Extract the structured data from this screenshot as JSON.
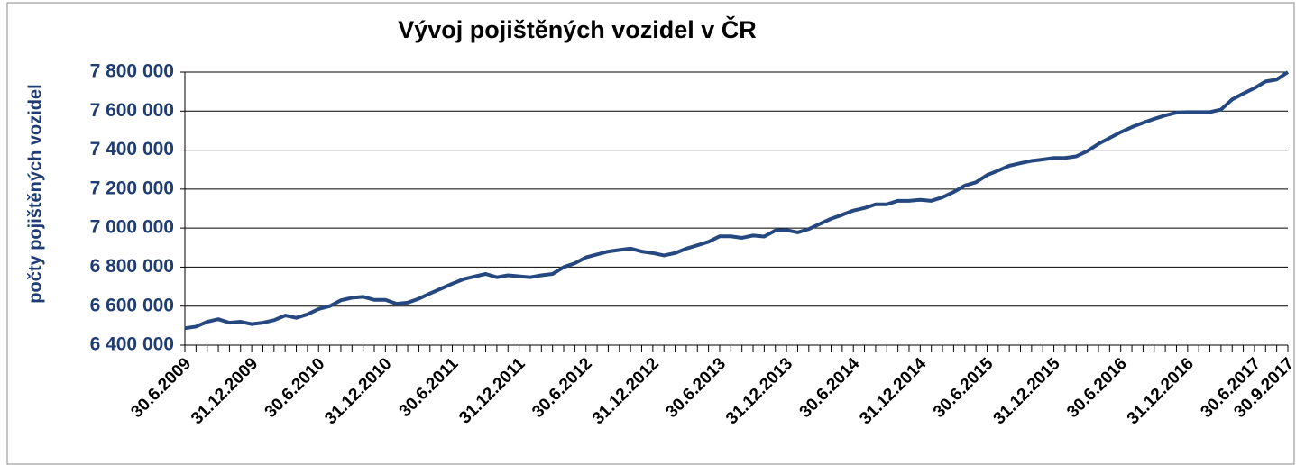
{
  "chart_data": {
    "type": "line",
    "title": "Vývoj pojištěných vozidel v ČR",
    "y_label": "počty pojištěných vozidel",
    "categories": [
      "30.6.2009",
      null,
      null,
      null,
      null,
      null,
      "31.12.2009",
      null,
      null,
      null,
      null,
      null,
      "30.6.2010",
      null,
      null,
      null,
      null,
      null,
      "31.12.2010",
      null,
      null,
      null,
      null,
      null,
      "30.6.2011",
      null,
      null,
      null,
      null,
      null,
      "31.12.2011",
      null,
      null,
      null,
      null,
      null,
      "30.6.2012",
      null,
      null,
      null,
      null,
      null,
      "31.12.2012",
      null,
      null,
      null,
      null,
      null,
      "30.6.2013",
      null,
      null,
      null,
      null,
      null,
      "31.12.2013",
      null,
      null,
      null,
      null,
      null,
      "30.6.2014",
      null,
      null,
      null,
      null,
      null,
      "31.12.2014",
      null,
      null,
      null,
      null,
      null,
      "30.6.2015",
      null,
      null,
      null,
      null,
      null,
      "31.12.2015",
      null,
      null,
      null,
      null,
      null,
      "30.6.2016",
      null,
      null,
      null,
      null,
      null,
      "31.12.2016",
      null,
      null,
      null,
      null,
      null,
      "30.6.2017",
      null,
      null,
      "30.9.2017"
    ],
    "series": [
      {
        "name": "počty pojištěných vozidel",
        "color": "#24487f",
        "values": [
          6487000,
          6495000,
          6520000,
          6533000,
          6515000,
          6520000,
          6508000,
          6515000,
          6528000,
          6552000,
          6540000,
          6558000,
          6585000,
          6600000,
          6630000,
          6643000,
          6648000,
          6632000,
          6632000,
          6612000,
          6618000,
          6638000,
          6665000,
          6690000,
          6715000,
          6738000,
          6752000,
          6765000,
          6748000,
          6758000,
          6753000,
          6748000,
          6758000,
          6765000,
          6800000,
          6820000,
          6850000,
          6865000,
          6880000,
          6888000,
          6895000,
          6880000,
          6872000,
          6860000,
          6872000,
          6895000,
          6912000,
          6930000,
          6958000,
          6958000,
          6950000,
          6962000,
          6957000,
          6988000,
          6990000,
          6978000,
          6995000,
          7022000,
          7048000,
          7068000,
          7090000,
          7103000,
          7122000,
          7122000,
          7140000,
          7140000,
          7145000,
          7140000,
          7158000,
          7185000,
          7218000,
          7235000,
          7272000,
          7295000,
          7320000,
          7333000,
          7345000,
          7352000,
          7360000,
          7360000,
          7368000,
          7395000,
          7432000,
          7462000,
          7492000,
          7518000,
          7540000,
          7560000,
          7578000,
          7592000,
          7595000,
          7595000,
          7595000,
          7608000,
          7660000,
          7690000,
          7718000,
          7752000,
          7762000,
          7800000
        ]
      }
    ],
    "ylim": [
      6400000,
      7800000
    ],
    "yticks": [
      {
        "value": 6400000,
        "label": "6 400 000"
      },
      {
        "value": 6600000,
        "label": "6 600 000"
      },
      {
        "value": 6800000,
        "label": "6 800 000"
      },
      {
        "value": 7000000,
        "label": "7 000 000"
      },
      {
        "value": 7200000,
        "label": "7 200 000"
      },
      {
        "value": 7400000,
        "label": "7 400 000"
      },
      {
        "value": 7600000,
        "label": "7 600 000"
      },
      {
        "value": 7800000,
        "label": "7 800 000"
      }
    ],
    "grid": true
  }
}
